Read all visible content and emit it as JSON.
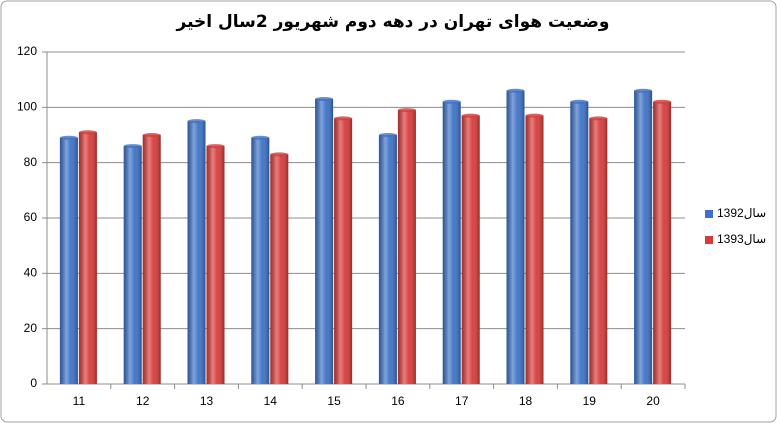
{
  "chart_data": {
    "type": "bar",
    "title": "وضعیت هوای تهران در دهه دوم شهریور 2سال اخیر",
    "categories": [
      "11",
      "12",
      "13",
      "14",
      "15",
      "16",
      "17",
      "18",
      "19",
      "20"
    ],
    "series": [
      {
        "name": "سال1392",
        "color": "#3d72c6",
        "values": [
          89,
          86,
          95,
          89,
          103,
          90,
          102,
          106,
          102,
          106
        ]
      },
      {
        "name": "سال1393",
        "color": "#d63c3a",
        "values": [
          91,
          90,
          86,
          83,
          96,
          99,
          97,
          97,
          96,
          102
        ]
      }
    ],
    "ylim": [
      0,
      120
    ],
    "yticks": [
      0,
      20,
      40,
      60,
      80,
      100,
      120
    ],
    "grid": true,
    "legend": "right"
  }
}
